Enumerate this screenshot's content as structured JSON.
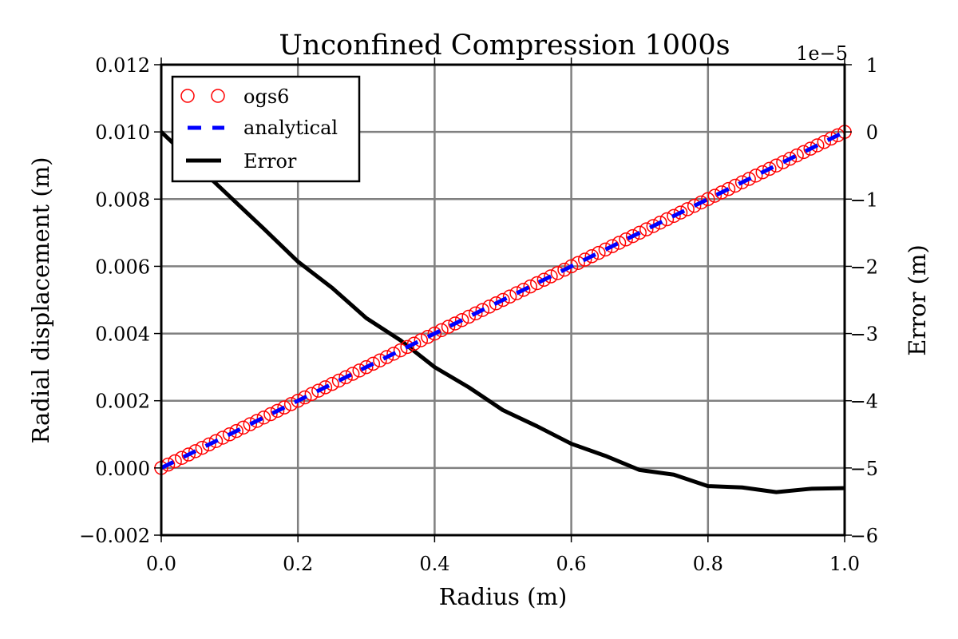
{
  "chart_data": {
    "type": "line",
    "title": "Unconfined Compression 1000s",
    "xlabel": "Radius (m)",
    "ylabel": "Radial displacement (m)",
    "y2label": "Error (m)",
    "y2_offset_label": "1e−5",
    "xlim": [
      0.0,
      1.0
    ],
    "ylim": [
      -0.002,
      0.012
    ],
    "y2lim": [
      -6,
      1
    ],
    "grid": true,
    "legend_position": "top-left",
    "xticks": [
      "0.0",
      "0.2",
      "0.4",
      "0.6",
      "0.8",
      "1.0"
    ],
    "xtick_values": [
      0.0,
      0.2,
      0.4,
      0.6,
      0.8,
      1.0
    ],
    "yticks": [
      "−0.002",
      "0.000",
      "0.002",
      "0.004",
      "0.006",
      "0.008",
      "0.010",
      "0.012"
    ],
    "ytick_values": [
      -0.002,
      0.0,
      0.002,
      0.004,
      0.006,
      0.008,
      0.01,
      0.012
    ],
    "y2ticks": [
      "−6",
      "−5",
      "−4",
      "−3",
      "−2",
      "−1",
      "0",
      "1"
    ],
    "y2tick_values": [
      -6,
      -5,
      -4,
      -3,
      -2,
      -1,
      0,
      1
    ],
    "series": [
      {
        "name": "ogs6",
        "axis": "left",
        "style": "markers-open-circle",
        "color": "#ff0000",
        "x_start": 0.0,
        "x_end": 1.0,
        "x_step": 0.01,
        "slope": 0.01,
        "intercept": 0.0
      },
      {
        "name": "analytical",
        "axis": "left",
        "style": "dashed",
        "color": "#0000ff",
        "x": [
          0.0,
          1.0
        ],
        "y": [
          0.0,
          0.01
        ]
      },
      {
        "name": "Error",
        "axis": "right",
        "style": "solid",
        "color": "#000000",
        "x": [
          0.0,
          0.05,
          0.1,
          0.15,
          0.2,
          0.25,
          0.3,
          0.35,
          0.4,
          0.45,
          0.5,
          0.55,
          0.6,
          0.65,
          0.7,
          0.75,
          0.8,
          0.85,
          0.9,
          0.95,
          1.0
        ],
        "y": [
          0.0,
          -0.48,
          -0.96,
          -1.44,
          -1.93,
          -2.32,
          -2.77,
          -3.1,
          -3.5,
          -3.8,
          -4.14,
          -4.38,
          -4.64,
          -4.82,
          -5.03,
          -5.1,
          -5.27,
          -5.29,
          -5.36,
          -5.31,
          -5.3
        ]
      }
    ],
    "legend": [
      {
        "label": "ogs6",
        "style": "markers-open-circle",
        "color": "#ff0000"
      },
      {
        "label": "analytical",
        "style": "dashed",
        "color": "#0000ff"
      },
      {
        "label": "Error",
        "style": "solid",
        "color": "#000000"
      }
    ]
  }
}
